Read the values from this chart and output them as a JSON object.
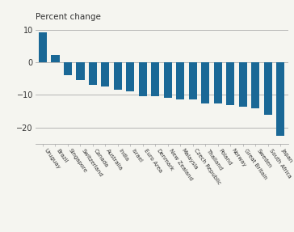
{
  "categories": [
    "Uruguay",
    "Brazil",
    "Singapore",
    "Switzerland",
    "Canada",
    "Australia",
    "India",
    "Israel",
    "Euro Area",
    "Denmark",
    "New Zealand",
    "Malaysia",
    "Czech Republic",
    "Thailand",
    "Poland",
    "Norway",
    "Great Britain",
    "Sweden",
    "South Africa",
    "Japan"
  ],
  "values": [
    9.2,
    2.2,
    -4.0,
    -5.5,
    -7.0,
    -7.5,
    -8.5,
    -9.0,
    -10.5,
    -10.5,
    -11.0,
    -11.3,
    -11.5,
    -12.5,
    -12.7,
    -13.0,
    -13.5,
    -14.0,
    -16.0,
    -22.5
  ],
  "bar_color": "#1a6896",
  "ylabel": "Percent change",
  "ylim": [
    -25,
    12
  ],
  "yticks": [
    -20,
    -10,
    0,
    10
  ],
  "background_color": "#f5f5f0",
  "line_color": "#aaaaaa",
  "label_color": "#333333",
  "tick_label_fontsize": 5.0,
  "ylabel_fontsize": 7.5,
  "ytick_fontsize": 7.0,
  "bar_width": 0.65,
  "label_rotation": -55
}
